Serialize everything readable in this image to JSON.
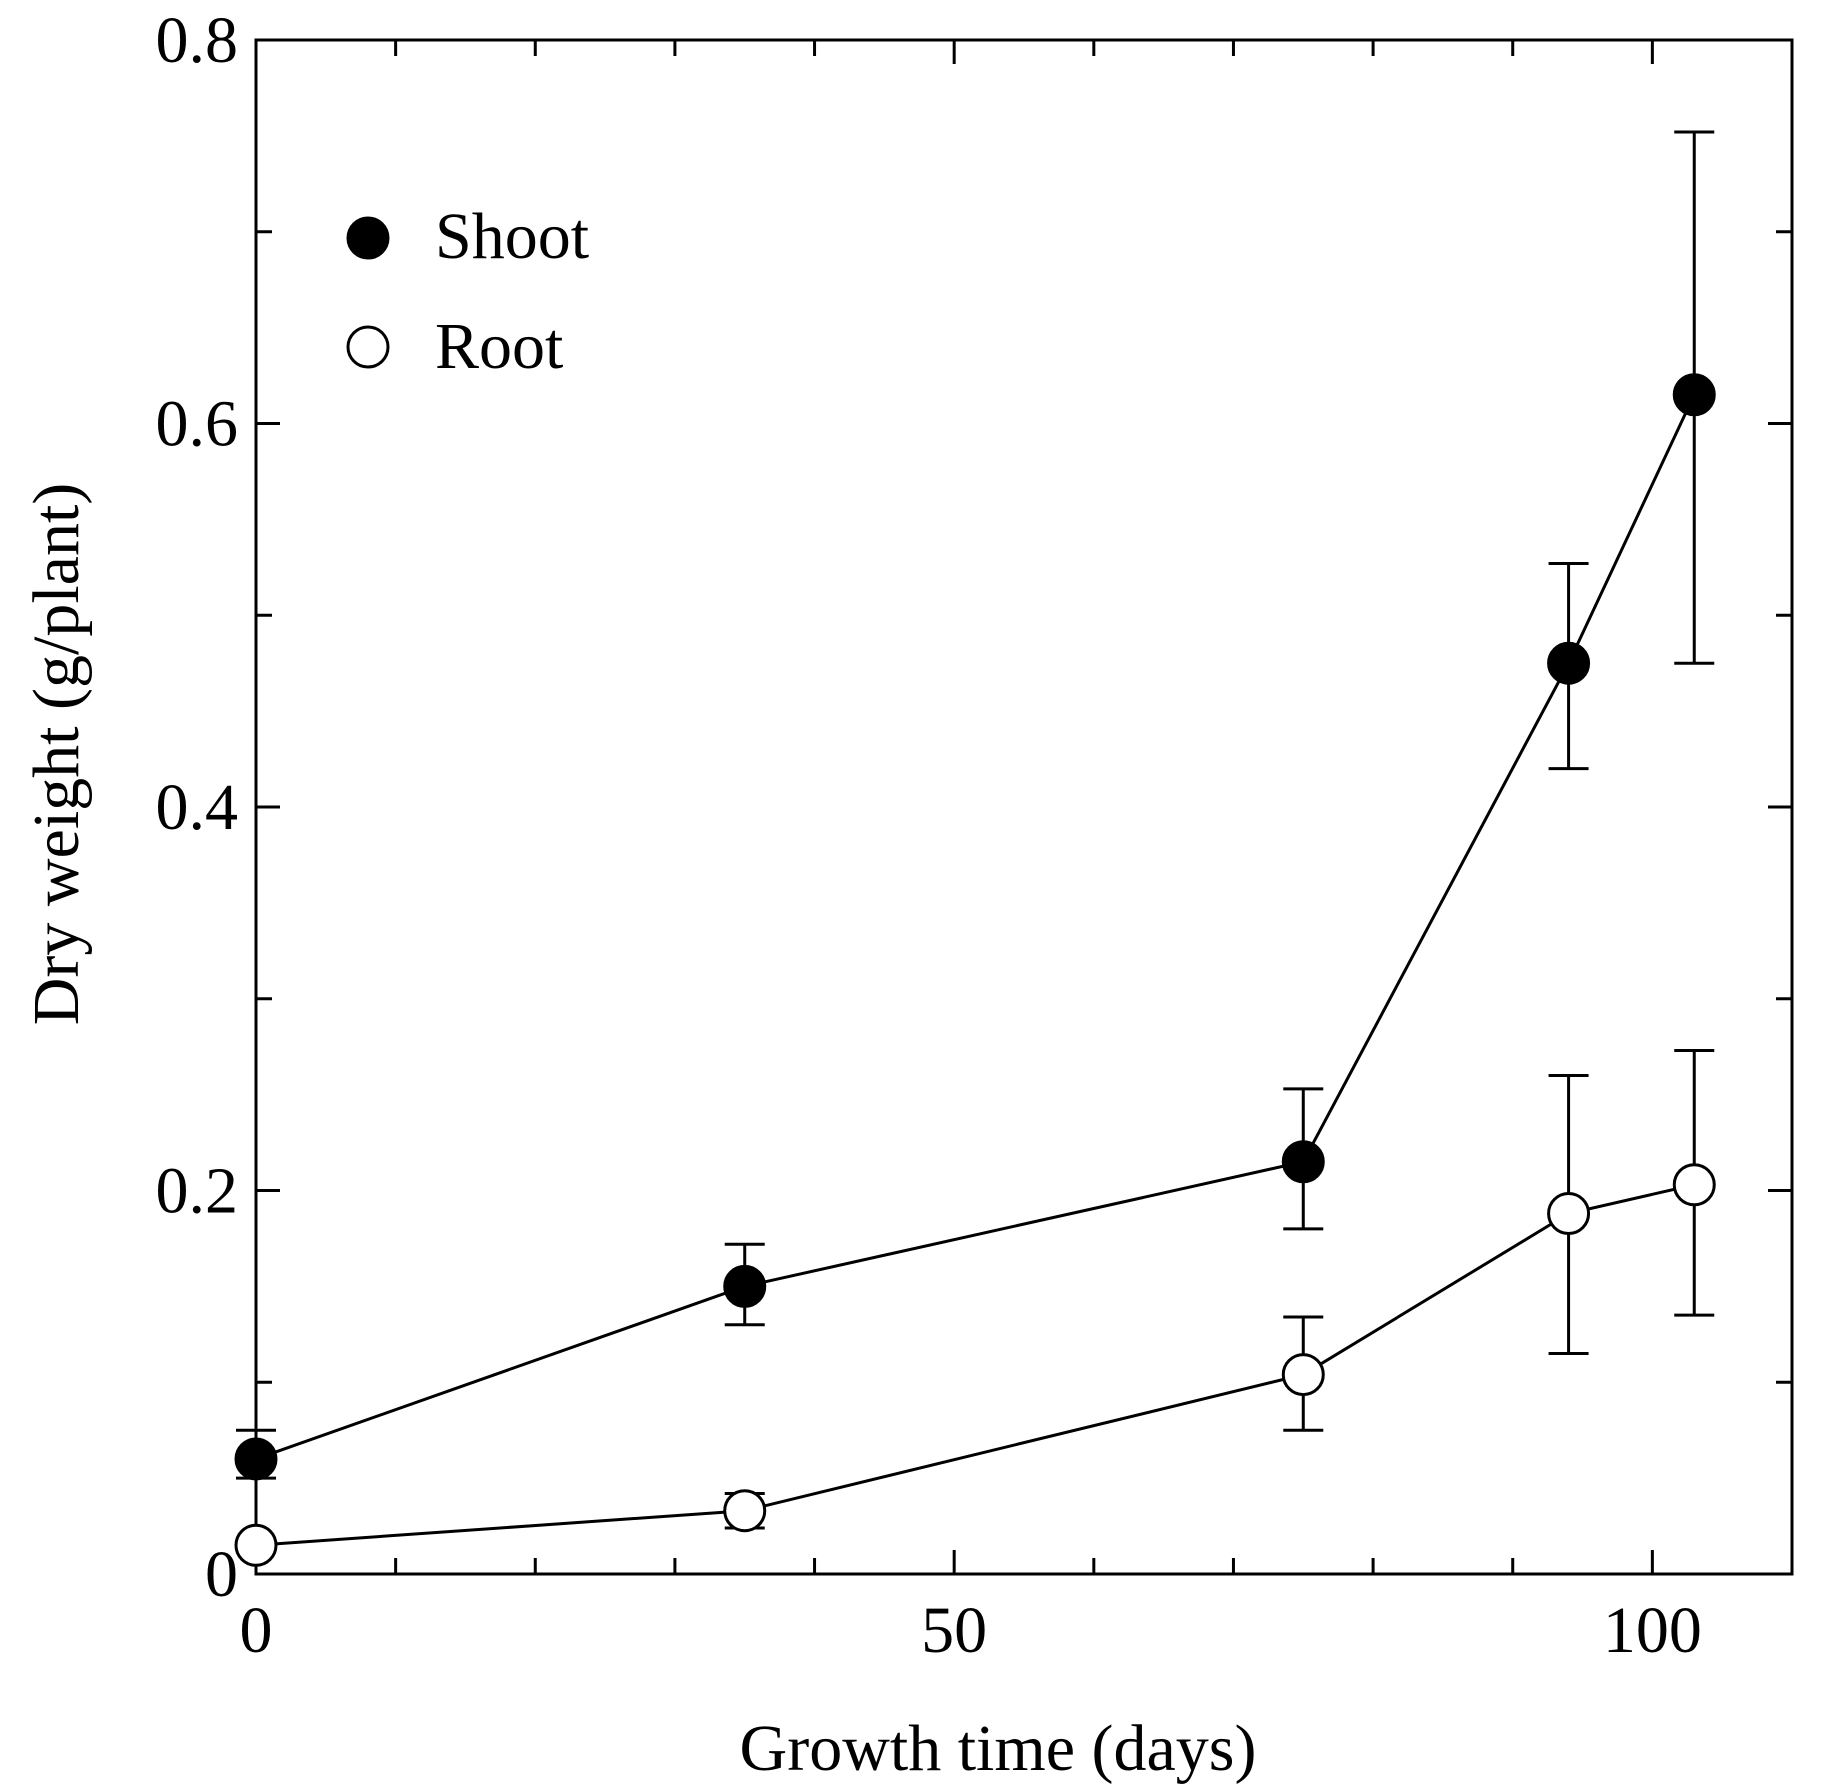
{
  "chart_data": {
    "type": "scatter",
    "title": "",
    "xlabel": "Growth time (days)",
    "ylabel": "Dry weight (g/plant)",
    "xlim": [
      0,
      110
    ],
    "ylim": [
      0,
      0.8
    ],
    "x_major_ticks": [
      0,
      50,
      100
    ],
    "x_tick_labels": [
      "0",
      "50",
      "100"
    ],
    "x_minor_ticks": [
      10,
      20,
      30,
      40,
      60,
      70,
      80,
      90
    ],
    "y_major_ticks": [
      0,
      0.2,
      0.4,
      0.6,
      0.8
    ],
    "y_tick_labels": [
      "0",
      "0.2",
      "0.4",
      "0.6",
      "0.8"
    ],
    "y_minor_ticks": [
      0.1,
      0.3,
      0.5,
      0.7
    ],
    "legend_position": "top-left",
    "grid": false,
    "series": [
      {
        "name": "Shoot",
        "marker": "filled-circle",
        "x": [
          0,
          35,
          75,
          94,
          103
        ],
        "y": [
          0.06,
          0.15,
          0.215,
          0.475,
          0.615
        ],
        "err_low": [
          0.05,
          0.13,
          0.18,
          0.42,
          0.475
        ],
        "err_high": [
          0.075,
          0.172,
          0.253,
          0.527,
          0.752
        ]
      },
      {
        "name": "Root",
        "marker": "open-circle",
        "x": [
          0,
          35,
          75,
          94,
          103
        ],
        "y": [
          0.015,
          0.033,
          0.104,
          0.188,
          0.203
        ],
        "err_low": [
          null,
          0.024,
          0.075,
          0.115,
          0.135
        ],
        "err_high": [
          null,
          0.042,
          0.134,
          0.26,
          0.273
        ]
      }
    ]
  }
}
